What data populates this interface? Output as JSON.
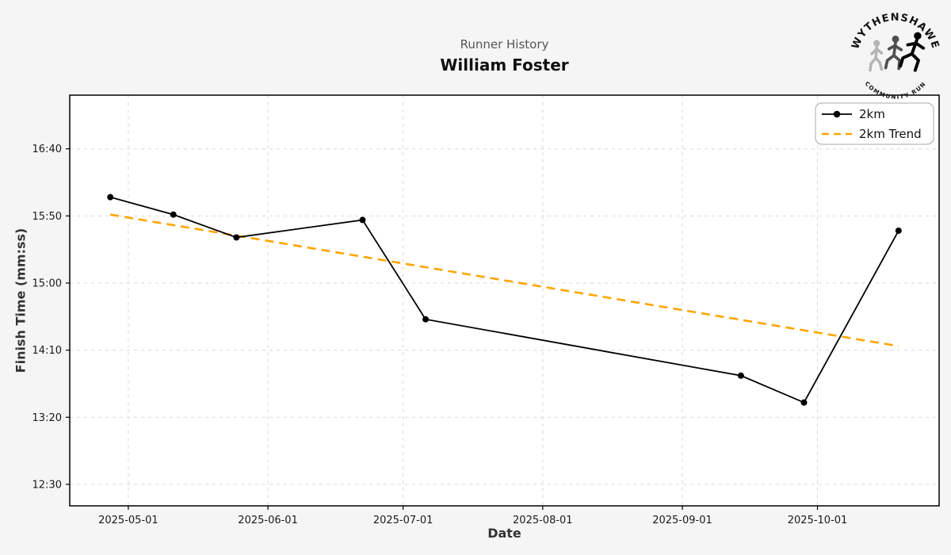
{
  "header": {
    "suptitle": "Runner History",
    "runner_name": "William Foster"
  },
  "logo": {
    "top_text": "WYTHENSHAWE",
    "bottom_text": "COMMUNITY RUN"
  },
  "colors": {
    "background": "#f5f5f5",
    "plot_background": "#ffffff",
    "grid": "#d9d9d9",
    "spine": "#000000",
    "series_line": "#000000",
    "trend_line": "#FFA500",
    "suptitle_text": "#555555",
    "title_text": "#111111",
    "legend_border": "#aaaaaa"
  },
  "chart_data": {
    "type": "line",
    "suptitle": "Runner History",
    "title": "William Foster",
    "xlabel": "Date",
    "ylabel": "Finish Time (mm:ss)",
    "grid": true,
    "legend_position": "top-right",
    "x": [
      "2025-04-27",
      "2025-05-11",
      "2025-05-25",
      "2025-06-22",
      "2025-07-06",
      "2025-09-14",
      "2025-09-28",
      "2025-10-19"
    ],
    "series": [
      {
        "name": "2km",
        "color": "#000000",
        "style": "solid",
        "marker": "circle",
        "values_mmss": [
          "16:04",
          "15:51",
          "15:34",
          "15:47",
          "14:33",
          "13:51",
          "13:31",
          "15:39"
        ],
        "values_seconds": [
          964,
          951,
          934,
          947,
          873,
          831,
          811,
          939
        ]
      },
      {
        "name": "2km Trend",
        "color": "#FFA500",
        "style": "dashed",
        "marker": "none",
        "trend_x": [
          "2025-04-27",
          "2025-10-19"
        ],
        "trend_seconds": [
          951,
          853
        ],
        "trend_mmss": [
          "15:51",
          "14:13"
        ]
      }
    ],
    "x_ticks": [
      "2025-05-01",
      "2025-06-01",
      "2025-07-01",
      "2025-08-01",
      "2025-09-01",
      "2025-10-01"
    ],
    "y_ticks_mmss": [
      "16:40",
      "15:50",
      "15:00",
      "14:10",
      "13:20",
      "12:30"
    ],
    "y_ticks_seconds": [
      1000,
      950,
      900,
      850,
      800,
      750
    ],
    "x_range": [
      "2025-04-18",
      "2025-10-28"
    ],
    "y_range_seconds": [
      734,
      1040
    ]
  }
}
